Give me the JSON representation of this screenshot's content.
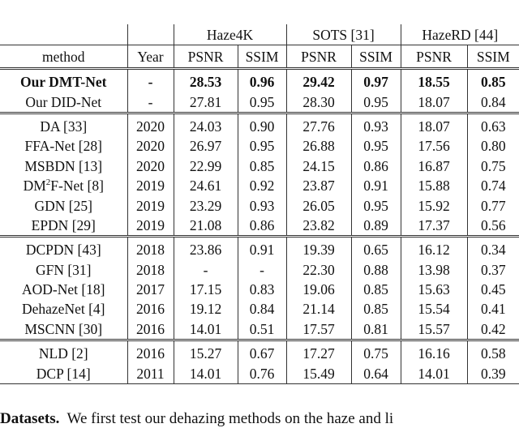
{
  "table": {
    "groups": [
      "Haze4K",
      "SOTS [31]",
      "HazeRD [44]"
    ],
    "columns": [
      "method",
      "Year",
      "PSNR",
      "SSIM",
      "PSNR",
      "SSIM",
      "PSNR",
      "SSIM"
    ],
    "sections": [
      [
        {
          "method": "Our DMT-Net",
          "bold": true,
          "cells": [
            "-",
            "28.53",
            "0.96",
            "29.42",
            "0.97",
            "18.55",
            "0.85"
          ]
        },
        {
          "method": "Our DID-Net",
          "cells": [
            "-",
            "27.81",
            "0.95",
            "28.30",
            "0.95",
            "18.07",
            "0.84"
          ]
        }
      ],
      [
        {
          "method": "DA [33]",
          "cells": [
            "2020",
            "24.03",
            "0.90",
            "27.76",
            "0.93",
            "18.07",
            "0.63"
          ]
        },
        {
          "method": "FFA-Net [28]",
          "cells": [
            "2020",
            "26.97",
            "0.95",
            "26.88",
            "0.95",
            "17.56",
            "0.80"
          ]
        },
        {
          "method": "MSBDN [13]",
          "cells": [
            "2020",
            "22.99",
            "0.85",
            "24.15",
            "0.86",
            "16.87",
            "0.75"
          ]
        },
        {
          "method": "DM2F-Net [8]",
          "method_html": "DM<sup>2</sup>F-Net [8]",
          "cells": [
            "2019",
            "24.61",
            "0.92",
            "23.87",
            "0.91",
            "15.88",
            "0.74"
          ]
        },
        {
          "method": "GDN [25]",
          "cells": [
            "2019",
            "23.29",
            "0.93",
            "26.05",
            "0.95",
            "15.92",
            "0.77"
          ]
        },
        {
          "method": "EPDN [29]",
          "cells": [
            "2019",
            "21.08",
            "0.86",
            "23.82",
            "0.89",
            "17.37",
            "0.56"
          ]
        }
      ],
      [
        {
          "method": "DCPDN [43]",
          "cells": [
            "2018",
            "23.86",
            "0.91",
            "19.39",
            "0.65",
            "16.12",
            "0.34"
          ]
        },
        {
          "method": "GFN [31]",
          "cells": [
            "2018",
            "-",
            "-",
            "22.30",
            "0.88",
            "13.98",
            "0.37"
          ]
        },
        {
          "method": "AOD-Net [18]",
          "cells": [
            "2017",
            "17.15",
            "0.83",
            "19.06",
            "0.85",
            "15.63",
            "0.45"
          ]
        },
        {
          "method": "DehazeNet [4]",
          "cells": [
            "2016",
            "19.12",
            "0.84",
            "21.14",
            "0.85",
            "15.54",
            "0.41"
          ]
        },
        {
          "method": "MSCNN [30]",
          "cells": [
            "2016",
            "14.01",
            "0.51",
            "17.57",
            "0.81",
            "15.57",
            "0.42"
          ]
        }
      ],
      [
        {
          "method": "NLD [2]",
          "cells": [
            "2016",
            "15.27",
            "0.67",
            "17.27",
            "0.75",
            "16.16",
            "0.58"
          ]
        },
        {
          "method": "DCP [14]",
          "cells": [
            "2011",
            "14.01",
            "0.76",
            "15.49",
            "0.64",
            "14.01",
            "0.39"
          ]
        }
      ]
    ]
  },
  "paragraph": {
    "heading": "Datasets.",
    "text": "We first test our dehazing methods on the haze and li"
  }
}
